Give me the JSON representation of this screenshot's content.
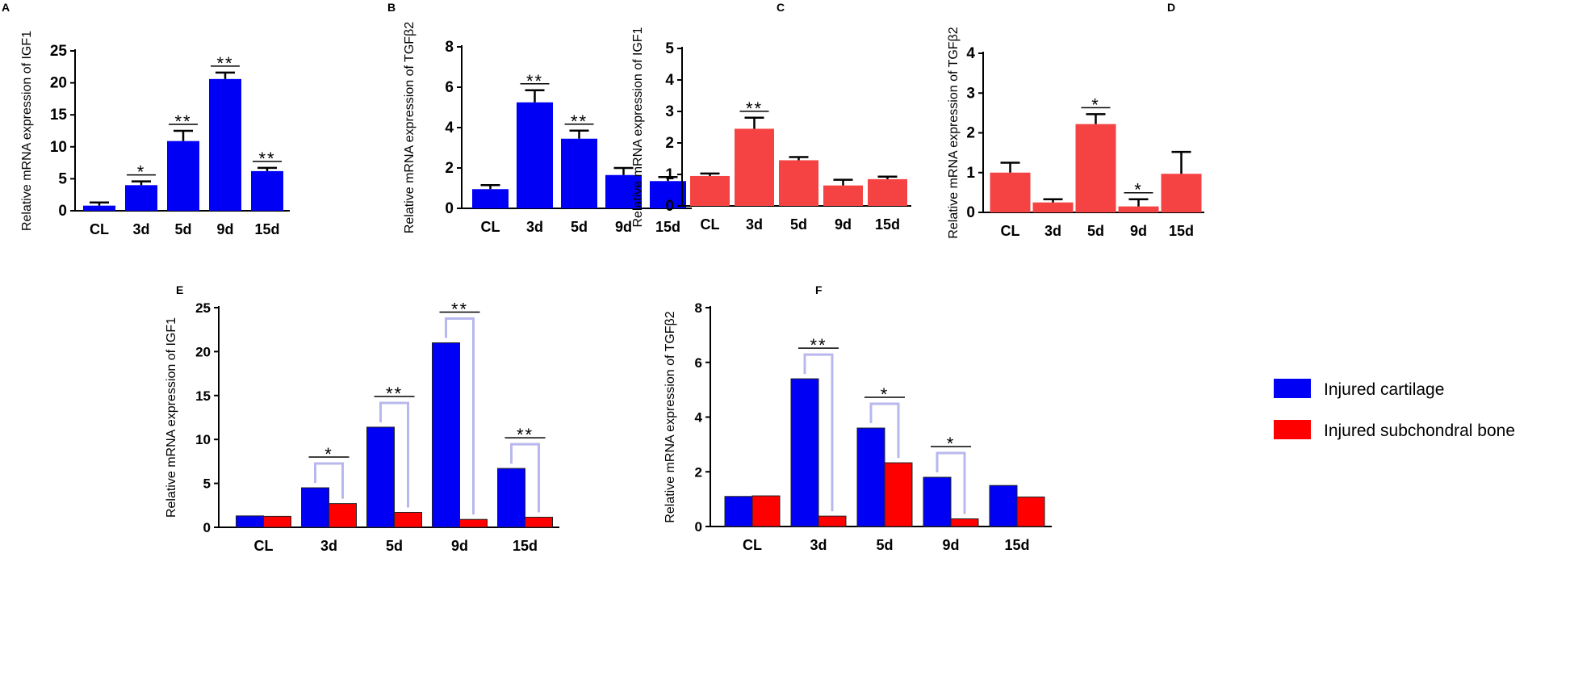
{
  "colors": {
    "cartilage": "#0000f5",
    "subchondral": "#f54242",
    "subchondral_grouped": "#ff0000",
    "bracket": "#b8b8ee",
    "axis": "#000000"
  },
  "legend": {
    "items": [
      {
        "label": "Injured cartilage",
        "color": "#0000f5"
      },
      {
        "label": "Injured subchondral bone",
        "color": "#ff0000"
      }
    ]
  },
  "chart_data": [
    {
      "panel": "A",
      "type": "bar",
      "ylabel": "Relative mRNA expression of IGF1",
      "categories": [
        "CL",
        "3d",
        "5d",
        "9d",
        "15d"
      ],
      "ylim": [
        0,
        25
      ],
      "yticks": [
        0,
        5,
        10,
        15,
        20,
        25
      ],
      "series": [
        {
          "name": "Injured cartilage",
          "values": [
            0.8,
            4.0,
            10.9,
            20.6,
            6.2
          ],
          "errors": [
            0.5,
            0.6,
            1.6,
            1.0,
            0.5
          ]
        }
      ],
      "significance": [
        "",
        "*",
        "**",
        "**",
        "**"
      ]
    },
    {
      "panel": "B",
      "type": "bar",
      "ylabel": "Relative mRNA expression of TGFβ2",
      "categories": [
        "CL",
        "3d",
        "5d",
        "9d",
        "15d"
      ],
      "ylim": [
        0,
        8
      ],
      "yticks": [
        0,
        2,
        4,
        6,
        8
      ],
      "series": [
        {
          "name": "Injured cartilage",
          "values": [
            0.95,
            5.25,
            3.45,
            1.65,
            1.35
          ],
          "errors": [
            0.2,
            0.6,
            0.4,
            0.35,
            0.2
          ]
        }
      ],
      "significance": [
        "",
        "**",
        "**",
        "",
        ""
      ]
    },
    {
      "panel": "C",
      "type": "bar",
      "ylabel": "Relative mRNA expression of IGF1",
      "categories": [
        "CL",
        "3d",
        "5d",
        "9d",
        "15d"
      ],
      "ylim": [
        0,
        5
      ],
      "yticks": [
        0,
        1,
        2,
        3,
        4,
        5
      ],
      "series": [
        {
          "name": "Injured subchondral bone",
          "values": [
            0.95,
            2.45,
            1.45,
            0.65,
            0.85
          ],
          "errors": [
            0.08,
            0.35,
            0.1,
            0.18,
            0.08
          ]
        }
      ],
      "significance": [
        "",
        "**",
        "",
        "",
        ""
      ]
    },
    {
      "panel": "D",
      "type": "bar",
      "ylabel": "Relative mRNA expression of TGFβ2",
      "categories": [
        "CL",
        "3d",
        "5d",
        "9d",
        "15d"
      ],
      "ylim": [
        0,
        4
      ],
      "yticks": [
        0,
        1,
        2,
        3,
        4
      ],
      "series": [
        {
          "name": "Injured subchondral bone",
          "values": [
            1.0,
            0.25,
            2.22,
            0.15,
            0.97
          ],
          "errors": [
            0.25,
            0.08,
            0.25,
            0.18,
            0.55
          ]
        }
      ],
      "significance": [
        "",
        "",
        "*",
        "*",
        ""
      ]
    },
    {
      "panel": "E",
      "type": "bar",
      "ylabel": "Relative mRNA expression of IGF1",
      "categories": [
        "CL",
        "3d",
        "5d",
        "9d",
        "15d"
      ],
      "ylim": [
        0,
        25
      ],
      "yticks": [
        0,
        5,
        10,
        15,
        20,
        25
      ],
      "series": [
        {
          "name": "Injured cartilage",
          "values": [
            1.3,
            4.5,
            11.4,
            21.0,
            6.7
          ]
        },
        {
          "name": "Injured subchondral bone",
          "values": [
            1.25,
            2.7,
            1.7,
            0.9,
            1.15
          ]
        }
      ],
      "significance": [
        "",
        "*",
        "**",
        "**",
        "**"
      ]
    },
    {
      "panel": "F",
      "type": "bar",
      "ylabel": "Relative mRNA expression of TGFβ2",
      "categories": [
        "CL",
        "3d",
        "5d",
        "9d",
        "15d"
      ],
      "ylim": [
        0,
        8
      ],
      "yticks": [
        0,
        2,
        4,
        6,
        8
      ],
      "series": [
        {
          "name": "Injured cartilage",
          "values": [
            1.1,
            5.4,
            3.6,
            1.8,
            1.5
          ]
        },
        {
          "name": "Injured subchondral bone",
          "values": [
            1.12,
            0.38,
            2.33,
            0.28,
            1.08
          ]
        }
      ],
      "significance": [
        "",
        "**",
        "*",
        "*",
        ""
      ]
    }
  ]
}
